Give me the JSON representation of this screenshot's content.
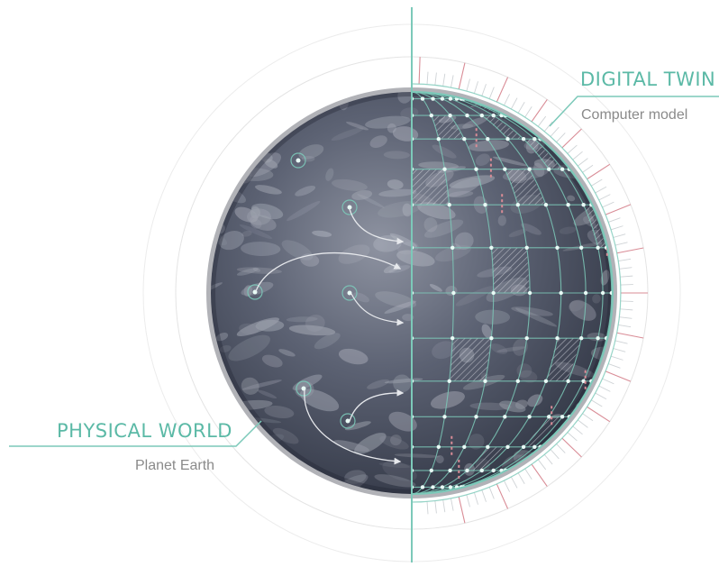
{
  "colors": {
    "accent": "#7cc9b9",
    "accent_dark": "#4fb3a0",
    "subtext": "#8a8a8a",
    "globe_dark": "#3a3f4e",
    "globe_mid": "#5c6273",
    "globe_light": "#8e93a1",
    "tick_red": "#d98c96",
    "orbit_ring": "#e2e2e2"
  },
  "digital_twin": {
    "title": "DIGITAL TWIN",
    "subtitle": "Computer model"
  },
  "physical_world": {
    "title": "PHYSICAL WORLD",
    "subtitle": "Planet Earth"
  },
  "icons": {
    "sensor_markers": "sensor-marker-icon",
    "flow_arrows": "data-flow-arrow-icon"
  }
}
